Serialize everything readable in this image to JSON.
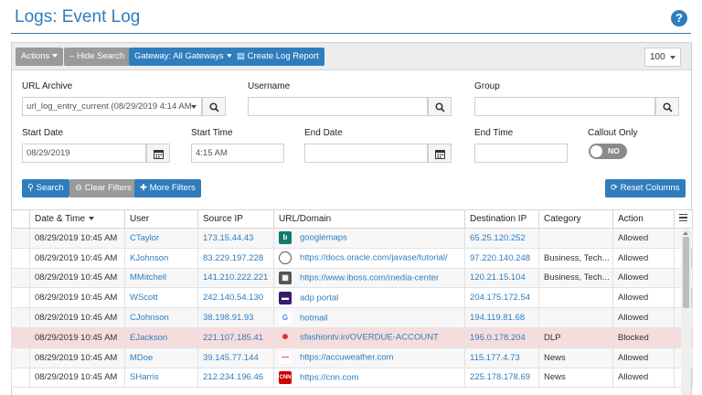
{
  "page": {
    "title": "Logs: Event Log",
    "help": "?"
  },
  "toolbar": {
    "actions_label": "Actions",
    "hide_search_label": "Hide Search",
    "gateway_label": "Gateway: All Gateways",
    "create_report_label": "Create Log Report",
    "page_size": "100"
  },
  "search": {
    "url_archive_label": "URL Archive",
    "url_archive_value": "url_log_entry_current (08/29/2019 4:14 AM",
    "username_label": "Username",
    "username_value": "",
    "group_label": "Group",
    "group_value": "",
    "start_date_label": "Start Date",
    "start_date_value": "08/29/2019",
    "start_time_label": "Start Time",
    "start_time_value": "4:15 AM",
    "end_date_label": "End Date",
    "end_date_value": "",
    "end_time_label": "End Time",
    "end_time_value": "",
    "callout_label": "Callout Only",
    "callout_value": "NO",
    "search_button": "Search",
    "clear_button": "Clear Filters",
    "more_button": "More Filters",
    "reset_columns_button": "Reset Columns"
  },
  "table": {
    "columns": [
      "Date & Time",
      "User",
      "Source IP",
      "URL/Domain",
      "Destination IP",
      "Category",
      "Action"
    ],
    "rows": [
      {
        "date": "08/29/2019 10:45 AM",
        "user": "CTaylor",
        "source_ip": "173.15.44.43",
        "icon": "bing-icon",
        "icon_color": "#0f7c6c",
        "icon_glyph": "b",
        "url": "googlemaps",
        "dest_ip": "65.25.120.252",
        "category": "",
        "action": "Allowed"
      },
      {
        "date": "08/29/2019 10:45 AM",
        "user": "KJohnson",
        "source_ip": "83.229.197.228",
        "icon": "globe-icon",
        "icon_color": "#ffffff",
        "icon_glyph": "",
        "url": "https://docs.oracle.com/javase/tutorial/",
        "dest_ip": "97.220.140.248",
        "category": "Business, Tech...",
        "action": "Allowed"
      },
      {
        "date": "08/29/2019 10:45 AM",
        "user": "MMitchell",
        "source_ip": "141.210.222.221",
        "icon": "iboss-icon",
        "icon_color": "#555555",
        "icon_glyph": "▦",
        "url": "https://www.iboss.com/media-center",
        "dest_ip": "120.21.15.104",
        "category": "Business, Tech...",
        "action": "Allowed"
      },
      {
        "date": "08/29/2019 10:45 AM",
        "user": "WScott",
        "source_ip": "242.140.54.130",
        "icon": "adp-icon",
        "icon_color": "#3b1a6b",
        "icon_glyph": "▬",
        "url": "adp portal",
        "dest_ip": "204.175.172.54",
        "category": "",
        "action": "Allowed"
      },
      {
        "date": "08/29/2019 10:45 AM",
        "user": "CJohnson",
        "source_ip": "38.198.91.93",
        "icon": "google-icon",
        "icon_color": "#ffffff",
        "icon_glyph": "G",
        "url": "hotmail",
        "dest_ip": "194.119.81.68",
        "category": "",
        "action": "Allowed"
      },
      {
        "date": "08/29/2019 10:45 AM",
        "user": "EJackson",
        "source_ip": "221.107.185.41",
        "icon": "sfashion-icon",
        "icon_color": "#f6dddd",
        "icon_glyph": "✺",
        "url": "sfashiontv.in/OVERDUE-ACCOUNT",
        "dest_ip": "195.0.178.204",
        "category": "DLP",
        "action": "Blocked"
      },
      {
        "date": "08/29/2019 10:45 AM",
        "user": "MDoe",
        "source_ip": "39.145.77.144",
        "icon": "accuweather-icon",
        "icon_color": "#ffffff",
        "icon_glyph": "—",
        "url": "https://accuweather.com",
        "dest_ip": "115.177.4.73",
        "category": "News",
        "action": "Allowed"
      },
      {
        "date": "08/29/2019 10:45 AM",
        "user": "SHarris",
        "source_ip": "212.234.196.46",
        "icon": "cnn-icon",
        "icon_color": "#cc0000",
        "icon_glyph": "CNN",
        "url": "https://cnn.com",
        "dest_ip": "225.178.178.69",
        "category": "News",
        "action": "Allowed"
      }
    ]
  },
  "colors": {
    "accent": "#2f7dbd",
    "blocked_row": "#f6dddd",
    "button_gray": "#9a9a9a"
  }
}
